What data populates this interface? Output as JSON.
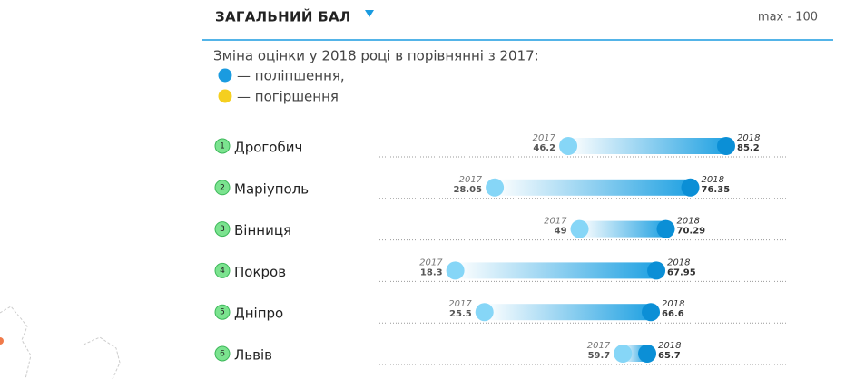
{
  "chart_data": {
    "type": "dumbbell",
    "title": "ЗАГАЛЬНИЙ БАЛ",
    "subtitle": "max - 100",
    "legend_title": "Зміна оцінки у 2018 році в порівнянні з 2017:",
    "legend": [
      {
        "label": "— поліпшення,",
        "color": "#1a9be0"
      },
      {
        "label": "— погіршення",
        "color": "#f5cf1f"
      }
    ],
    "ranks": [
      1,
      2,
      3,
      4,
      5,
      6
    ],
    "categories": [
      "Дрогобич",
      "Маріуполь",
      "Вінниця",
      "Покров",
      "Дніпро",
      "Львів"
    ],
    "series": [
      {
        "name": "2017",
        "color": "#86d6f7",
        "values": [
          46.2,
          28.05,
          49,
          18.3,
          25.5,
          59.7
        ]
      },
      {
        "name": "2018",
        "color": "#0b8fd6",
        "values": [
          85.2,
          76.35,
          70.29,
          67.95,
          66.6,
          65.7
        ]
      }
    ],
    "xlim": [
      0,
      100
    ]
  }
}
